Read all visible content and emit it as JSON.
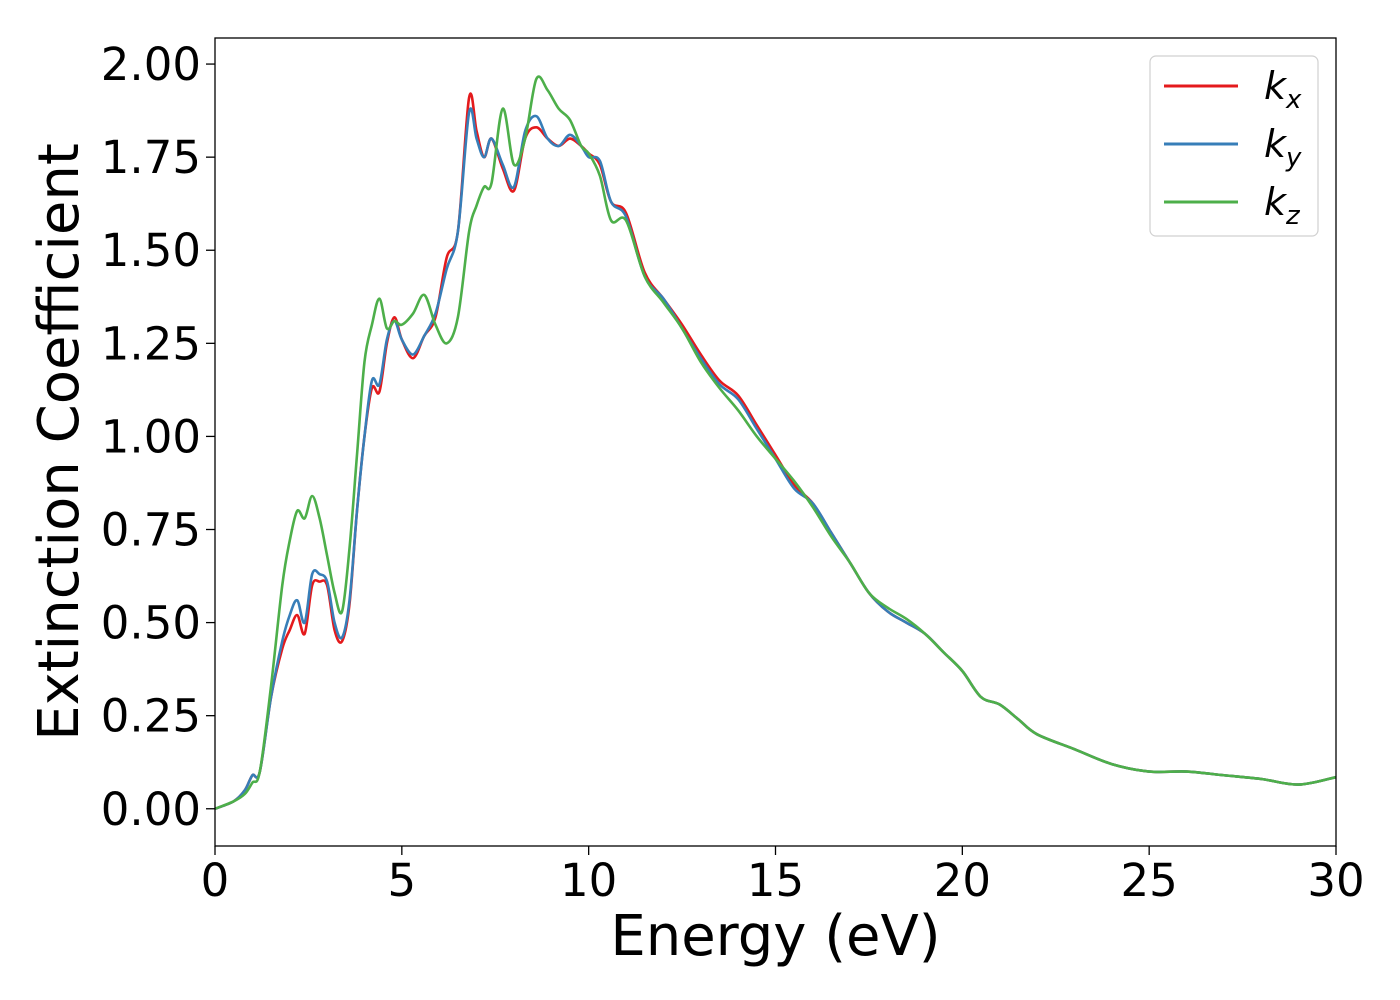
{
  "chart_data": {
    "type": "line",
    "title": "",
    "xlabel": "Energy (eV)",
    "ylabel": "Extinction Coefficient",
    "xlim": [
      0,
      30
    ],
    "ylim": [
      -0.1,
      2.07
    ],
    "xticks": [
      "0",
      "5",
      "10",
      "15",
      "20",
      "25",
      "30"
    ],
    "yticks": [
      "0.00",
      "0.25",
      "0.50",
      "0.75",
      "1.00",
      "1.25",
      "1.50",
      "1.75",
      "2.00"
    ],
    "grid": false,
    "legend_position": "top-right",
    "series": [
      {
        "name": "k_x",
        "legend_main": "k",
        "legend_sub": "x",
        "color": "#e41a1c",
        "x": [
          0,
          0.5,
          0.8,
          1.0,
          1.2,
          1.5,
          1.8,
          2.0,
          2.2,
          2.4,
          2.6,
          2.8,
          3.0,
          3.2,
          3.4,
          3.6,
          3.8,
          4.0,
          4.2,
          4.4,
          4.6,
          4.8,
          5.0,
          5.3,
          5.6,
          5.9,
          6.2,
          6.5,
          6.8,
          7.0,
          7.2,
          7.4,
          7.7,
          8.0,
          8.3,
          8.6,
          8.9,
          9.2,
          9.5,
          9.8,
          10.0,
          10.3,
          10.6,
          11.0,
          11.5,
          12.0,
          12.5,
          13.0,
          13.5,
          14.0,
          14.5,
          15.0,
          15.5,
          16.0,
          16.5,
          17.0,
          17.5,
          18.0,
          18.5,
          19.0,
          19.5,
          20.0,
          20.5,
          21.0,
          21.5,
          22.0,
          23.0,
          24.0,
          25.0,
          26.0,
          27.0,
          28.0,
          29.0,
          30.0
        ],
        "values": [
          0.0,
          0.02,
          0.05,
          0.09,
          0.1,
          0.3,
          0.43,
          0.48,
          0.52,
          0.47,
          0.6,
          0.61,
          0.6,
          0.48,
          0.45,
          0.55,
          0.8,
          1.0,
          1.13,
          1.12,
          1.25,
          1.32,
          1.26,
          1.21,
          1.27,
          1.32,
          1.48,
          1.55,
          1.91,
          1.82,
          1.75,
          1.8,
          1.72,
          1.66,
          1.8,
          1.83,
          1.8,
          1.78,
          1.8,
          1.78,
          1.76,
          1.73,
          1.63,
          1.6,
          1.44,
          1.37,
          1.3,
          1.22,
          1.15,
          1.11,
          1.03,
          0.95,
          0.87,
          0.82,
          0.74,
          0.66,
          0.58,
          0.53,
          0.5,
          0.47,
          0.42,
          0.37,
          0.3,
          0.28,
          0.24,
          0.2,
          0.16,
          0.12,
          0.1,
          0.1,
          0.09,
          0.08,
          0.065,
          0.085
        ]
      },
      {
        "name": "k_y",
        "legend_main": "k",
        "legend_sub": "y",
        "color": "#377eb8",
        "x": [
          0,
          0.5,
          0.8,
          1.0,
          1.2,
          1.5,
          1.8,
          2.0,
          2.2,
          2.4,
          2.6,
          2.8,
          3.0,
          3.2,
          3.4,
          3.6,
          3.8,
          4.0,
          4.2,
          4.4,
          4.6,
          4.8,
          5.0,
          5.3,
          5.6,
          5.9,
          6.2,
          6.5,
          6.8,
          7.0,
          7.2,
          7.4,
          7.7,
          8.0,
          8.3,
          8.6,
          8.9,
          9.2,
          9.5,
          9.8,
          10.0,
          10.3,
          10.6,
          11.0,
          11.5,
          12.0,
          12.5,
          13.0,
          13.5,
          14.0,
          14.5,
          15.0,
          15.5,
          16.0,
          16.5,
          17.0,
          17.5,
          18.0,
          18.5,
          19.0,
          19.5,
          20.0,
          20.5,
          21.0,
          21.5,
          22.0,
          23.0,
          24.0,
          25.0,
          26.0,
          27.0,
          28.0,
          29.0,
          30.0
        ],
        "values": [
          0.0,
          0.02,
          0.05,
          0.09,
          0.1,
          0.3,
          0.45,
          0.52,
          0.56,
          0.5,
          0.63,
          0.63,
          0.61,
          0.5,
          0.46,
          0.56,
          0.8,
          1.0,
          1.15,
          1.14,
          1.26,
          1.31,
          1.26,
          1.22,
          1.27,
          1.33,
          1.45,
          1.55,
          1.87,
          1.8,
          1.75,
          1.8,
          1.73,
          1.67,
          1.82,
          1.86,
          1.8,
          1.78,
          1.81,
          1.78,
          1.75,
          1.74,
          1.63,
          1.59,
          1.43,
          1.37,
          1.29,
          1.21,
          1.14,
          1.1,
          1.02,
          0.94,
          0.86,
          0.82,
          0.74,
          0.66,
          0.58,
          0.53,
          0.5,
          0.47,
          0.42,
          0.37,
          0.3,
          0.28,
          0.24,
          0.2,
          0.16,
          0.12,
          0.1,
          0.1,
          0.09,
          0.08,
          0.065,
          0.085
        ]
      },
      {
        "name": "k_z",
        "legend_main": "k",
        "legend_sub": "z",
        "color": "#4daf4a",
        "x": [
          0,
          0.5,
          0.8,
          1.0,
          1.2,
          1.5,
          1.8,
          2.0,
          2.2,
          2.4,
          2.6,
          2.8,
          3.0,
          3.2,
          3.4,
          3.6,
          3.8,
          4.0,
          4.2,
          4.4,
          4.6,
          4.8,
          5.0,
          5.3,
          5.6,
          5.9,
          6.2,
          6.5,
          6.8,
          7.0,
          7.2,
          7.4,
          7.7,
          8.0,
          8.3,
          8.6,
          8.9,
          9.2,
          9.5,
          9.8,
          10.0,
          10.3,
          10.6,
          11.0,
          11.5,
          12.0,
          12.5,
          13.0,
          13.5,
          14.0,
          14.5,
          15.0,
          15.5,
          16.0,
          16.5,
          17.0,
          17.5,
          18.0,
          18.5,
          19.0,
          19.5,
          20.0,
          20.5,
          21.0,
          21.5,
          22.0,
          23.0,
          24.0,
          25.0,
          26.0,
          27.0,
          28.0,
          29.0,
          30.0
        ],
        "values": [
          0.0,
          0.02,
          0.04,
          0.07,
          0.1,
          0.33,
          0.6,
          0.72,
          0.8,
          0.78,
          0.84,
          0.78,
          0.68,
          0.58,
          0.53,
          0.7,
          0.95,
          1.2,
          1.3,
          1.37,
          1.29,
          1.31,
          1.3,
          1.33,
          1.38,
          1.3,
          1.25,
          1.32,
          1.55,
          1.62,
          1.67,
          1.68,
          1.88,
          1.73,
          1.8,
          1.96,
          1.93,
          1.88,
          1.85,
          1.78,
          1.76,
          1.7,
          1.58,
          1.58,
          1.43,
          1.36,
          1.29,
          1.2,
          1.13,
          1.07,
          1.0,
          0.94,
          0.88,
          0.81,
          0.73,
          0.66,
          0.58,
          0.54,
          0.51,
          0.47,
          0.42,
          0.37,
          0.3,
          0.28,
          0.24,
          0.2,
          0.16,
          0.12,
          0.1,
          0.1,
          0.09,
          0.08,
          0.065,
          0.085
        ]
      }
    ]
  }
}
